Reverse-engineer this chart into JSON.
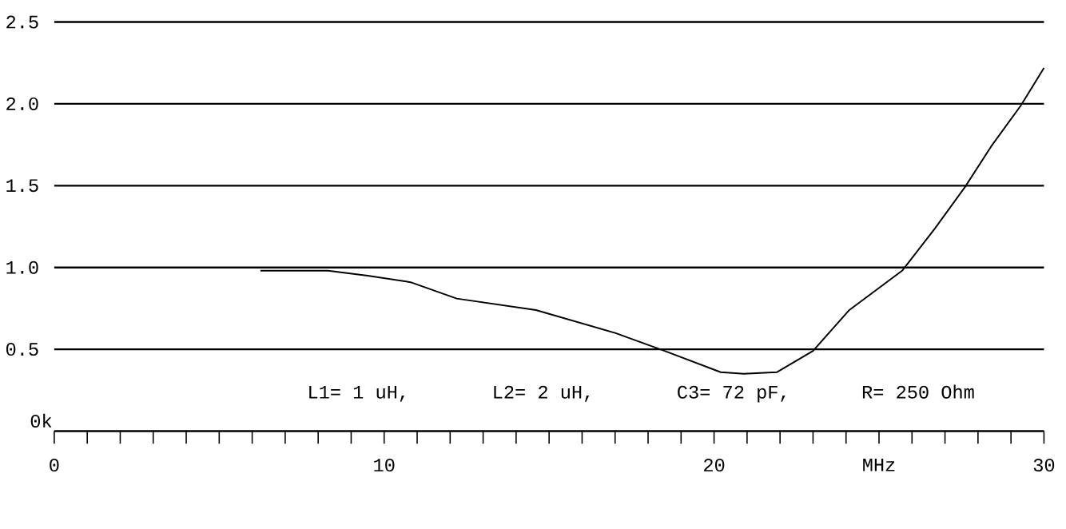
{
  "chart_data": {
    "type": "line",
    "x": [
      6.25,
      8.3,
      9.5,
      10.8,
      12.2,
      14.6,
      17.0,
      18.5,
      20.2,
      20.9,
      21.9,
      23.0,
      24.1,
      25.7,
      26.7,
      27.6,
      28.4,
      29.3,
      30.0
    ],
    "values": [
      0.98,
      0.98,
      0.95,
      0.91,
      0.81,
      0.74,
      0.6,
      0.49,
      0.36,
      0.35,
      0.36,
      0.49,
      0.74,
      0.98,
      1.24,
      1.49,
      1.74,
      1.99,
      2.22
    ],
    "color": "#000000",
    "xlim": [
      0,
      30
    ],
    "ylim": [
      0,
      2.5
    ],
    "xticks": [
      0,
      {
        "value": 1,
        "label": null
      },
      {
        "value": 2,
        "label": null
      },
      {
        "value": 3,
        "label": null
      },
      {
        "value": 4,
        "label": null
      },
      {
        "value": 5,
        "label": null
      },
      {
        "value": 6,
        "label": null
      },
      {
        "value": 7,
        "label": null
      },
      {
        "value": 8,
        "label": null
      },
      {
        "value": 9,
        "label": null
      },
      10,
      {
        "value": 11,
        "label": null
      },
      {
        "value": 12,
        "label": null
      },
      {
        "value": 13,
        "label": null
      },
      {
        "value": 14,
        "label": null
      },
      {
        "value": 15,
        "label": null
      },
      {
        "value": 16,
        "label": null
      },
      {
        "value": 17,
        "label": null
      },
      {
        "value": 18,
        "label": null
      },
      {
        "value": 19,
        "label": null
      },
      20,
      {
        "value": 21,
        "label": null
      },
      {
        "value": 22,
        "label": null
      },
      {
        "value": 23,
        "label": null
      },
      {
        "value": 24,
        "label": null
      },
      {
        "value": 25,
        "label": "MHz"
      },
      {
        "value": 26,
        "label": null
      },
      {
        "value": 27,
        "label": null
      },
      {
        "value": 28,
        "label": null
      },
      {
        "value": 29,
        "label": null
      },
      30
    ],
    "yticks": [
      {
        "value": 0.5,
        "label": "0.5"
      },
      {
        "value": 1.0,
        "label": "1.0"
      },
      {
        "value": 1.5,
        "label": "1.5"
      },
      {
        "value": 2.0,
        "label": "2.0"
      },
      {
        "value": 2.5,
        "label": "2.5"
      }
    ],
    "grid": "y",
    "annotations": [
      "L1= 1 uH,",
      "L2= 2 uH,",
      "C3= 72 pF,",
      "R= 250 Ohm",
      "0k"
    ]
  }
}
